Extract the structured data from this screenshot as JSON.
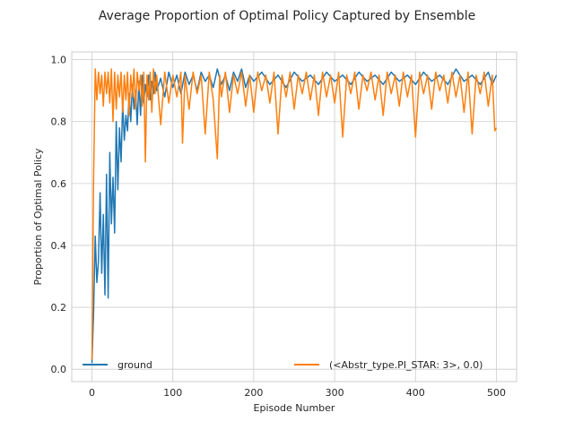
{
  "chart_data": {
    "type": "line",
    "title": "Average Proportion of Optimal Policy Captured by Ensemble",
    "xlabel": "Episode Number",
    "ylabel": "Proportion of Optimal Policy",
    "xlim": [
      -25,
      525
    ],
    "ylim": [
      -0.04,
      1.025
    ],
    "xticks": [
      0,
      100,
      200,
      300,
      400,
      500
    ],
    "yticks": [
      0.0,
      0.2,
      0.4,
      0.6,
      0.8,
      1.0
    ],
    "xtick_labels": [
      "0",
      "100",
      "200",
      "300",
      "400",
      "500"
    ],
    "ytick_labels": [
      "0.0",
      "0.2",
      "0.4",
      "0.6",
      "0.8",
      "1.0"
    ],
    "grid": true,
    "legend_position": "bottom",
    "series": [
      {
        "name": "ground",
        "color": "#1f77b4",
        "points": [
          [
            0,
            0.02
          ],
          [
            2,
            0.18
          ],
          [
            4,
            0.43
          ],
          [
            6,
            0.28
          ],
          [
            8,
            0.35
          ],
          [
            10,
            0.57
          ],
          [
            12,
            0.31
          ],
          [
            14,
            0.5
          ],
          [
            16,
            0.24
          ],
          [
            18,
            0.63
          ],
          [
            20,
            0.23
          ],
          [
            22,
            0.7
          ],
          [
            24,
            0.47
          ],
          [
            26,
            0.62
          ],
          [
            28,
            0.44
          ],
          [
            30,
            0.8
          ],
          [
            32,
            0.58
          ],
          [
            34,
            0.78
          ],
          [
            36,
            0.67
          ],
          [
            38,
            0.86
          ],
          [
            40,
            0.74
          ],
          [
            42,
            0.82
          ],
          [
            44,
            0.77
          ],
          [
            46,
            0.89
          ],
          [
            48,
            0.8
          ],
          [
            50,
            0.92
          ],
          [
            52,
            0.84
          ],
          [
            54,
            0.9
          ],
          [
            56,
            0.79
          ],
          [
            58,
            0.93
          ],
          [
            60,
            0.82
          ],
          [
            62,
            0.95
          ],
          [
            64,
            0.86
          ],
          [
            66,
            0.92
          ],
          [
            68,
            0.88
          ],
          [
            70,
            0.95
          ],
          [
            72,
            0.87
          ],
          [
            74,
            0.93
          ],
          [
            76,
            0.89
          ],
          [
            78,
            0.96
          ],
          [
            80,
            0.9
          ],
          [
            85,
            0.94
          ],
          [
            90,
            0.88
          ],
          [
            95,
            0.96
          ],
          [
            100,
            0.91
          ],
          [
            105,
            0.95
          ],
          [
            110,
            0.89
          ],
          [
            115,
            0.96
          ],
          [
            120,
            0.92
          ],
          [
            125,
            0.95
          ],
          [
            130,
            0.9
          ],
          [
            135,
            0.96
          ],
          [
            140,
            0.93
          ],
          [
            145,
            0.95
          ],
          [
            150,
            0.91
          ],
          [
            155,
            0.97
          ],
          [
            160,
            0.92
          ],
          [
            165,
            0.95
          ],
          [
            170,
            0.9
          ],
          [
            175,
            0.96
          ],
          [
            180,
            0.93
          ],
          [
            185,
            0.97
          ],
          [
            190,
            0.91
          ],
          [
            195,
            0.95
          ],
          [
            200,
            0.93
          ],
          [
            210,
            0.96
          ],
          [
            220,
            0.92
          ],
          [
            230,
            0.95
          ],
          [
            240,
            0.91
          ],
          [
            250,
            0.96
          ],
          [
            260,
            0.93
          ],
          [
            270,
            0.95
          ],
          [
            280,
            0.92
          ],
          [
            290,
            0.96
          ],
          [
            300,
            0.93
          ],
          [
            310,
            0.95
          ],
          [
            320,
            0.92
          ],
          [
            330,
            0.96
          ],
          [
            340,
            0.93
          ],
          [
            350,
            0.95
          ],
          [
            360,
            0.92
          ],
          [
            370,
            0.96
          ],
          [
            380,
            0.93
          ],
          [
            390,
            0.95
          ],
          [
            400,
            0.92
          ],
          [
            410,
            0.96
          ],
          [
            420,
            0.93
          ],
          [
            430,
            0.95
          ],
          [
            440,
            0.92
          ],
          [
            450,
            0.97
          ],
          [
            460,
            0.93
          ],
          [
            470,
            0.95
          ],
          [
            480,
            0.92
          ],
          [
            490,
            0.96
          ],
          [
            495,
            0.92
          ],
          [
            500,
            0.95
          ]
        ]
      },
      {
        "name": "(<Abstr_type.PI_STAR: 3>, 0.0)",
        "color": "#ff7f0e",
        "points": [
          [
            0,
            0.03
          ],
          [
            2,
            0.6
          ],
          [
            4,
            0.97
          ],
          [
            6,
            0.87
          ],
          [
            8,
            0.96
          ],
          [
            10,
            0.89
          ],
          [
            12,
            0.95
          ],
          [
            14,
            0.85
          ],
          [
            16,
            0.96
          ],
          [
            18,
            0.89
          ],
          [
            20,
            0.96
          ],
          [
            22,
            0.86
          ],
          [
            24,
            0.97
          ],
          [
            26,
            0.8
          ],
          [
            28,
            0.96
          ],
          [
            30,
            0.84
          ],
          [
            32,
            0.95
          ],
          [
            34,
            0.88
          ],
          [
            36,
            0.96
          ],
          [
            38,
            0.83
          ],
          [
            40,
            0.95
          ],
          [
            42,
            0.87
          ],
          [
            44,
            0.96
          ],
          [
            46,
            0.82
          ],
          [
            48,
            0.95
          ],
          [
            50,
            0.88
          ],
          [
            52,
            0.97
          ],
          [
            54,
            0.84
          ],
          [
            56,
            0.96
          ],
          [
            58,
            0.9
          ],
          [
            60,
            0.95
          ],
          [
            62,
            0.85
          ],
          [
            64,
            0.96
          ],
          [
            66,
            0.67
          ],
          [
            68,
            0.95
          ],
          [
            70,
            0.87
          ],
          [
            72,
            0.96
          ],
          [
            74,
            0.83
          ],
          [
            76,
            0.97
          ],
          [
            78,
            0.89
          ],
          [
            80,
            0.95
          ],
          [
            85,
            0.79
          ],
          [
            90,
            0.96
          ],
          [
            95,
            0.86
          ],
          [
            100,
            0.95
          ],
          [
            105,
            0.88
          ],
          [
            110,
            0.96
          ],
          [
            112,
            0.73
          ],
          [
            115,
            0.95
          ],
          [
            120,
            0.84
          ],
          [
            125,
            0.96
          ],
          [
            130,
            0.89
          ],
          [
            135,
            0.95
          ],
          [
            140,
            0.76
          ],
          [
            145,
            0.96
          ],
          [
            150,
            0.87
          ],
          [
            155,
            0.68
          ],
          [
            158,
            0.95
          ],
          [
            160,
            0.88
          ],
          [
            165,
            0.96
          ],
          [
            170,
            0.83
          ],
          [
            175,
            0.95
          ],
          [
            180,
            0.89
          ],
          [
            185,
            0.96
          ],
          [
            190,
            0.85
          ],
          [
            195,
            0.95
          ],
          [
            200,
            0.83
          ],
          [
            205,
            0.96
          ],
          [
            210,
            0.9
          ],
          [
            215,
            0.95
          ],
          [
            220,
            0.86
          ],
          [
            225,
            0.96
          ],
          [
            230,
            0.76
          ],
          [
            235,
            0.95
          ],
          [
            240,
            0.88
          ],
          [
            245,
            0.96
          ],
          [
            250,
            0.84
          ],
          [
            255,
            0.95
          ],
          [
            260,
            0.89
          ],
          [
            265,
            0.96
          ],
          [
            270,
            0.87
          ],
          [
            275,
            0.95
          ],
          [
            280,
            0.82
          ],
          [
            285,
            0.96
          ],
          [
            290,
            0.88
          ],
          [
            295,
            0.95
          ],
          [
            300,
            0.86
          ],
          [
            305,
            0.96
          ],
          [
            310,
            0.75
          ],
          [
            315,
            0.95
          ],
          [
            320,
            0.89
          ],
          [
            325,
            0.96
          ],
          [
            330,
            0.84
          ],
          [
            335,
            0.95
          ],
          [
            340,
            0.9
          ],
          [
            345,
            0.96
          ],
          [
            350,
            0.87
          ],
          [
            355,
            0.95
          ],
          [
            360,
            0.82
          ],
          [
            365,
            0.96
          ],
          [
            370,
            0.89
          ],
          [
            375,
            0.95
          ],
          [
            380,
            0.85
          ],
          [
            385,
            0.96
          ],
          [
            390,
            0.88
          ],
          [
            395,
            0.95
          ],
          [
            400,
            0.75
          ],
          [
            405,
            0.96
          ],
          [
            410,
            0.89
          ],
          [
            415,
            0.95
          ],
          [
            420,
            0.84
          ],
          [
            425,
            0.96
          ],
          [
            430,
            0.9
          ],
          [
            435,
            0.95
          ],
          [
            440,
            0.86
          ],
          [
            445,
            0.96
          ],
          [
            450,
            0.88
          ],
          [
            455,
            0.95
          ],
          [
            460,
            0.83
          ],
          [
            465,
            0.96
          ],
          [
            470,
            0.76
          ],
          [
            475,
            0.95
          ],
          [
            480,
            0.89
          ],
          [
            485,
            0.96
          ],
          [
            490,
            0.85
          ],
          [
            495,
            0.95
          ],
          [
            498,
            0.77
          ],
          [
            500,
            0.78
          ]
        ]
      }
    ]
  }
}
